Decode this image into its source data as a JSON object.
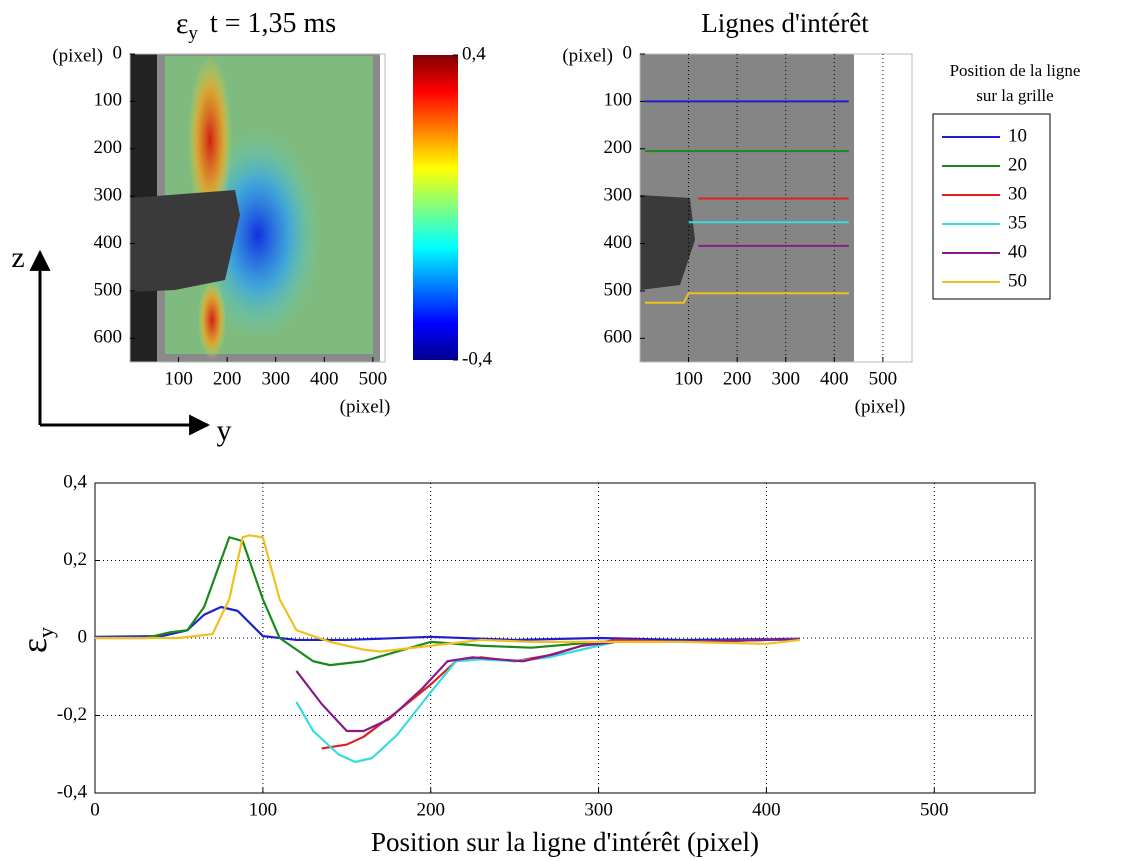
{
  "chart_data": [
    {
      "type": "image",
      "title": "ε",
      "title_subscript": "y",
      "title_suffix": "t = 1,35 ms",
      "ylabel": "(pixel)",
      "xlabel": "(pixel)",
      "xlim": [
        0,
        525
      ],
      "ylim": [
        0,
        650
      ],
      "y_inverted": true,
      "xticks": [
        100,
        200,
        300,
        400,
        500
      ],
      "yticks": [
        0,
        100,
        200,
        300,
        400,
        500,
        600
      ],
      "colorbar": {
        "lim": [
          -0.4,
          0.4
        ],
        "ticks": [
          {
            "value": 0.4,
            "label": "0,4"
          },
          {
            "value": -0.4,
            "label": "-0,4"
          }
        ]
      },
      "orientation_labels": {
        "vertical": "z",
        "horizontal": "y"
      }
    },
    {
      "type": "image",
      "title": "Lignes d'intérêt",
      "ylabel": "(pixel)",
      "xlabel": "(pixel)",
      "xlim": [
        0,
        560
      ],
      "ylim": [
        0,
        650
      ],
      "y_inverted": true,
      "xticks": [
        100,
        200,
        300,
        400,
        500
      ],
      "yticks": [
        0,
        100,
        200,
        300,
        400,
        500,
        600
      ],
      "grid": "x",
      "legend": "right",
      "legend_title": [
        "Position de la ligne",
        "sur la grille"
      ],
      "series": [
        {
          "name": "10",
          "color": "#1f1fd0",
          "x": [
            10,
            430
          ],
          "values": [
            100,
            100
          ]
        },
        {
          "name": "20",
          "color": "#1a8a1a",
          "x": [
            10,
            430
          ],
          "values": [
            205,
            205
          ]
        },
        {
          "name": "30",
          "color": "#e02020",
          "x": [
            120,
            430
          ],
          "values": [
            305,
            305
          ]
        },
        {
          "name": "35",
          "color": "#33dddd",
          "x": [
            100,
            430
          ],
          "values": [
            355,
            355
          ]
        },
        {
          "name": "40",
          "color": "#8a1a8a",
          "x": [
            120,
            430
          ],
          "values": [
            405,
            405
          ]
        },
        {
          "name": "50",
          "color": "#f0c020",
          "x": [
            10,
            90,
            100,
            430
          ],
          "values": [
            525,
            525,
            505,
            505
          ]
        }
      ]
    },
    {
      "type": "line",
      "xlabel": "Position sur la ligne d'intérêt (pixel)",
      "ylabel": "ε",
      "ylabel_subscript": "y",
      "xlim": [
        0,
        560
      ],
      "ylim": [
        -0.4,
        0.4
      ],
      "grid": true,
      "xticks": [
        0,
        100,
        200,
        300,
        400,
        500
      ],
      "yticks": [
        {
          "value": 0.4,
          "label": "0,4"
        },
        {
          "value": 0.2,
          "label": "0,2"
        },
        0,
        {
          "value": -0.2,
          "label": "-0,2"
        },
        {
          "value": -0.4,
          "label": "-0,4"
        }
      ],
      "series": [
        {
          "color": "#1f1fd0",
          "x": [
            0,
            40,
            55,
            65,
            75,
            85,
            100,
            120,
            150,
            200,
            250,
            300,
            350,
            400,
            420
          ],
          "values": [
            0.003,
            0.005,
            0.02,
            0.06,
            0.08,
            0.07,
            0.005,
            -0.005,
            -0.005,
            0.003,
            -0.005,
            0,
            -0.005,
            -0.003,
            -0.002
          ]
        },
        {
          "color": "#1a8a1a",
          "x": [
            0,
            30,
            45,
            55,
            65,
            80,
            88,
            100,
            110,
            130,
            140,
            160,
            180,
            200,
            230,
            260,
            300,
            350,
            400,
            420
          ],
          "values": [
            0,
            0,
            0.015,
            0.02,
            0.08,
            0.26,
            0.25,
            0.1,
            0,
            -0.06,
            -0.07,
            -0.06,
            -0.035,
            -0.01,
            -0.02,
            -0.025,
            -0.01,
            -0.01,
            -0.005,
            -0.003
          ]
        },
        {
          "color": "#e02020",
          "x": [
            135,
            150,
            160,
            180,
            200,
            215,
            230,
            250,
            270,
            290,
            310,
            350,
            400,
            420
          ],
          "values": [
            -0.285,
            -0.275,
            -0.255,
            -0.19,
            -0.12,
            -0.06,
            -0.05,
            -0.06,
            -0.045,
            -0.02,
            -0.005,
            -0.01,
            -0.005,
            -0.003
          ]
        },
        {
          "color": "#33dddd",
          "x": [
            120,
            130,
            145,
            155,
            165,
            180,
            200,
            215,
            230,
            250,
            270,
            290,
            310,
            350,
            400,
            420
          ],
          "values": [
            -0.165,
            -0.24,
            -0.3,
            -0.32,
            -0.31,
            -0.25,
            -0.14,
            -0.06,
            -0.055,
            -0.06,
            -0.05,
            -0.03,
            -0.01,
            -0.01,
            -0.005,
            -0.003
          ]
        },
        {
          "color": "#8a1a8a",
          "x": [
            120,
            135,
            150,
            160,
            175,
            195,
            210,
            225,
            240,
            255,
            275,
            290,
            310,
            350,
            400,
            420
          ],
          "values": [
            -0.085,
            -0.17,
            -0.24,
            -0.24,
            -0.21,
            -0.13,
            -0.06,
            -0.05,
            -0.055,
            -0.06,
            -0.04,
            -0.02,
            -0.01,
            -0.01,
            -0.005,
            -0.003
          ]
        },
        {
          "color": "#f0c020",
          "x": [
            0,
            50,
            70,
            80,
            88,
            92,
            100,
            110,
            120,
            140,
            160,
            170,
            200,
            230,
            260,
            300,
            350,
            400,
            420
          ],
          "values": [
            0,
            0,
            0.01,
            0.1,
            0.26,
            0.265,
            0.26,
            0.1,
            0.02,
            -0.01,
            -0.03,
            -0.035,
            -0.02,
            -0.005,
            -0.01,
            -0.01,
            -0.01,
            -0.015,
            -0.005
          ]
        }
      ]
    }
  ]
}
